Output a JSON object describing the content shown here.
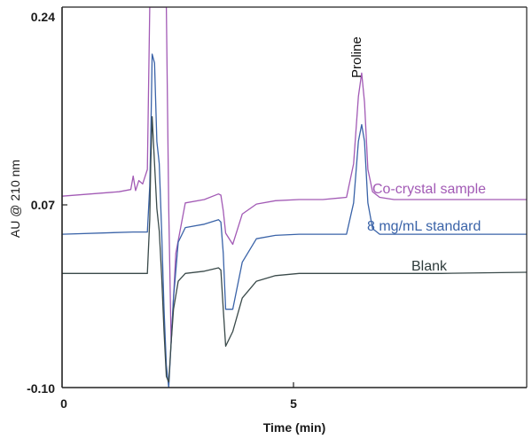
{
  "chart_data": {
    "type": "line",
    "xlabel": "Time (min)",
    "ylabel": "AU @ 210 nm",
    "xlim": [
      0,
      9.8
    ],
    "ylim": [
      -0.1,
      0.24
    ],
    "x_ticks": [
      "0",
      "5"
    ],
    "y_ticks": [
      "0.24",
      "0.07",
      "-0.10"
    ],
    "grid": false,
    "annotation": "Proline",
    "colors": {
      "axis": "#222222",
      "co_crystal": "#a25ab5",
      "standard": "#3a63a8",
      "blank": "#3a4a4a"
    },
    "series": [
      {
        "name": "Co-crystal sample",
        "x": [
          0,
          1.2,
          1.45,
          1.5,
          1.55,
          1.62,
          1.7,
          1.8,
          1.85,
          1.9,
          2.0,
          2.1,
          2.2,
          2.25,
          2.3,
          2.4,
          2.6,
          3.0,
          3.3,
          3.35,
          3.4,
          3.45,
          3.6,
          3.8,
          4.1,
          4.5,
          5.0,
          5.5,
          6.0,
          6.15,
          6.25,
          6.32,
          6.38,
          6.45,
          6.55,
          6.7,
          7.0,
          8.0,
          9.8
        ],
        "y": [
          0.071,
          0.075,
          0.077,
          0.089,
          0.076,
          0.085,
          0.082,
          0.095,
          0.24,
          0.24,
          0.24,
          0.24,
          0.24,
          0.06,
          -0.06,
          0.02,
          0.065,
          0.068,
          0.073,
          0.072,
          0.058,
          0.038,
          0.028,
          0.055,
          0.064,
          0.067,
          0.068,
          0.068,
          0.07,
          0.1,
          0.16,
          0.181,
          0.155,
          0.095,
          0.075,
          0.07,
          0.068,
          0.068,
          0.068
        ]
      },
      {
        "name": "8 mg/mL standard",
        "x": [
          0,
          1.5,
          1.8,
          1.85,
          1.87,
          1.9,
          1.95,
          2.0,
          2.05,
          2.1,
          2.15,
          2.2,
          2.25,
          2.3,
          2.35,
          2.45,
          2.6,
          3.0,
          3.3,
          3.35,
          3.4,
          3.45,
          3.6,
          3.8,
          4.1,
          4.5,
          5.0,
          5.5,
          6.0,
          6.15,
          6.25,
          6.32,
          6.38,
          6.45,
          6.55,
          6.7,
          7.0,
          8.0,
          9.8
        ],
        "y": [
          0.037,
          0.039,
          0.039,
          0.08,
          0.12,
          0.198,
          0.19,
          0.12,
          0.1,
          0.04,
          -0.03,
          -0.08,
          -0.1,
          -0.06,
          -0.02,
          0.03,
          0.043,
          0.046,
          0.05,
          0.048,
          0.02,
          -0.03,
          -0.03,
          0.012,
          0.033,
          0.036,
          0.037,
          0.037,
          0.037,
          0.065,
          0.12,
          0.135,
          0.12,
          0.065,
          0.042,
          0.037,
          0.037,
          0.037,
          0.037
        ]
      },
      {
        "name": "Blank",
        "x": [
          0,
          1.5,
          1.8,
          1.85,
          1.87,
          1.9,
          1.95,
          2.0,
          2.05,
          2.1,
          2.15,
          2.2,
          2.25,
          2.3,
          2.35,
          2.45,
          2.6,
          3.0,
          3.3,
          3.35,
          3.4,
          3.45,
          3.6,
          3.8,
          4.1,
          4.5,
          5.0,
          6.0,
          7.0,
          8.0,
          9.8
        ],
        "y": [
          0.002,
          0.002,
          0.002,
          0.05,
          0.1,
          0.142,
          0.1,
          0.06,
          0.04,
          0.0,
          -0.05,
          -0.09,
          -0.095,
          -0.06,
          -0.03,
          -0.005,
          0.002,
          0.004,
          0.007,
          0.005,
          -0.03,
          -0.063,
          -0.05,
          -0.02,
          -0.005,
          0.0,
          0.002,
          0.002,
          0.002,
          0.002,
          0.003
        ]
      }
    ]
  }
}
